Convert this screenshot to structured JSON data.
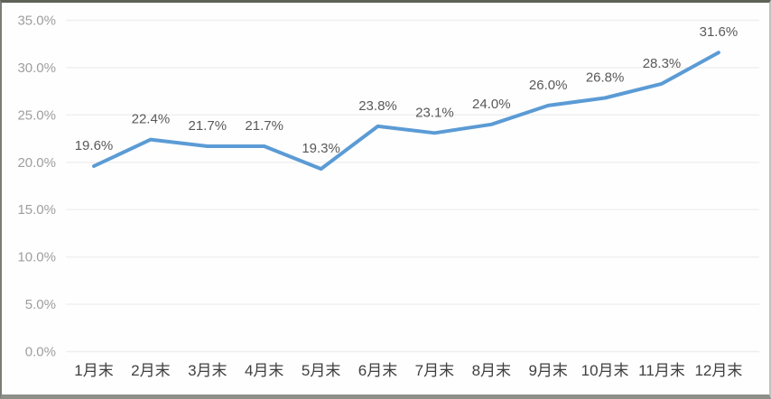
{
  "chart_data": {
    "type": "line",
    "title": "",
    "xlabel": "",
    "ylabel": "",
    "legend": "none",
    "grid": true,
    "categories": [
      "1月末",
      "2月末",
      "3月末",
      "4月末",
      "5月末",
      "6月末",
      "7月末",
      "8月末",
      "9月末",
      "10月末",
      "11月末",
      "12月末"
    ],
    "series": [
      {
        "name": "",
        "values": [
          19.6,
          22.4,
          21.7,
          21.7,
          19.3,
          23.8,
          23.1,
          24.0,
          26.0,
          26.8,
          28.3,
          31.6
        ]
      }
    ],
    "data_labels": [
      "19.6%",
      "22.4%",
      "21.7%",
      "21.7%",
      "19.3%",
      "23.8%",
      "23.1%",
      "24.0%",
      "26.0%",
      "26.8%",
      "28.3%",
      "31.6%"
    ],
    "ylim": [
      0,
      35
    ],
    "ytick_step": 5,
    "ytick_labels": [
      "0.0%",
      "5.0%",
      "10.0%",
      "15.0%",
      "20.0%",
      "25.0%",
      "30.0%",
      "35.0%"
    ],
    "colors": {
      "line": "#5B9BD5",
      "data_label": "#595959",
      "ytick_label": "#9e9e9e",
      "xtick_label": "#404040",
      "gridline": "#efefef",
      "background": "#fefefe"
    }
  }
}
